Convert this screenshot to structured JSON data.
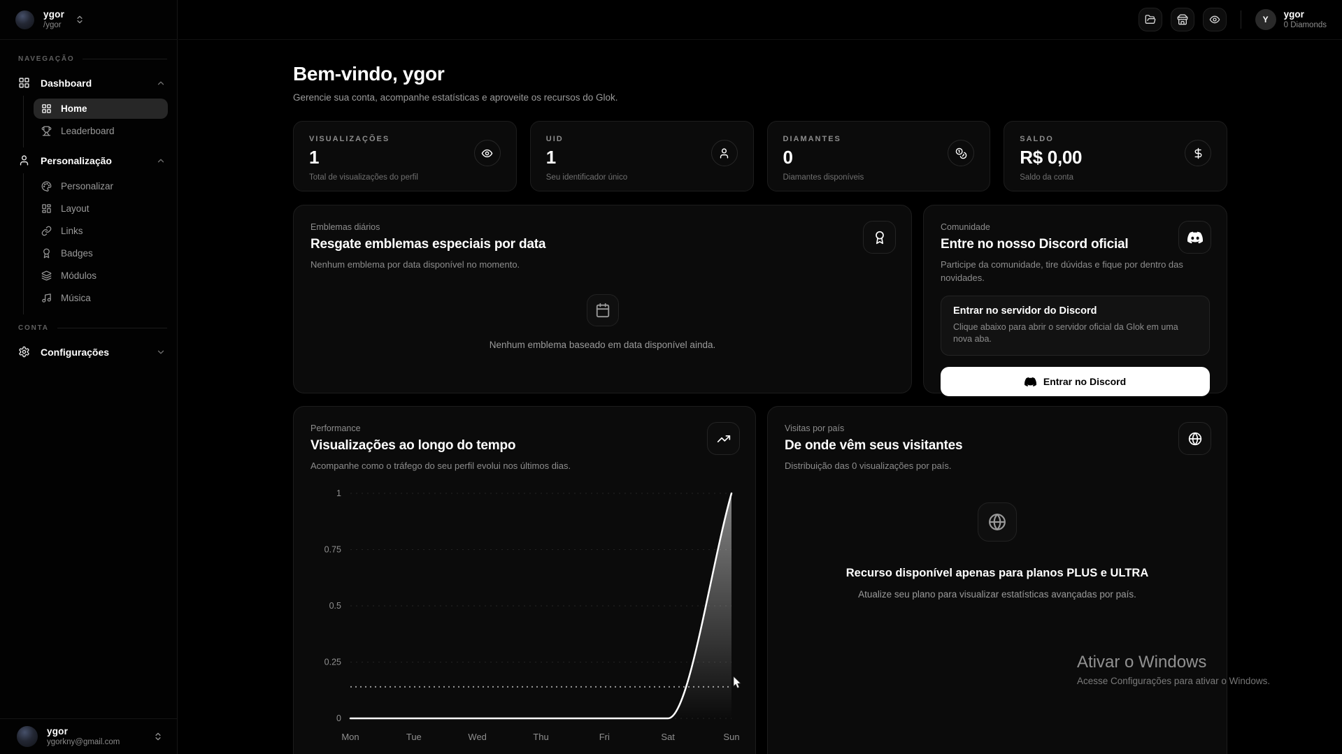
{
  "sidebar": {
    "user": {
      "name": "ygor",
      "handle": "/ygor"
    },
    "section_nav": "NAVEGAÇÃO",
    "section_account": "CONTA",
    "groups": [
      {
        "label": "Dashboard",
        "icon": "layout-grid-icon",
        "items": [
          {
            "label": "Home",
            "icon": "layout-grid-icon",
            "active": true
          },
          {
            "label": "Leaderboard",
            "icon": "trophy-icon",
            "active": false
          }
        ]
      },
      {
        "label": "Personalização",
        "icon": "user-icon",
        "items": [
          {
            "label": "Personalizar",
            "icon": "palette-icon"
          },
          {
            "label": "Layout",
            "icon": "layout-dashboard-icon"
          },
          {
            "label": "Links",
            "icon": "link-icon"
          },
          {
            "label": "Badges",
            "icon": "award-icon"
          },
          {
            "label": "Módulos",
            "icon": "layers-icon"
          },
          {
            "label": "Música",
            "icon": "music-icon"
          }
        ]
      }
    ],
    "settings": {
      "label": "Configurações",
      "icon": "gear-icon"
    },
    "footer": {
      "name": "ygor",
      "email": "ygorkny@gmail.com"
    }
  },
  "header": {
    "buttons": [
      {
        "icon": "folder-open-icon"
      },
      {
        "icon": "store-icon"
      },
      {
        "icon": "eye-icon"
      }
    ],
    "user": {
      "initial": "Y",
      "name": "ygor",
      "diamonds": "0 Diamonds"
    }
  },
  "main": {
    "welcome": {
      "title": "Bem-vindo, ygor",
      "subtitle": "Gerencie sua conta, acompanhe estatísticas e aproveite os recursos do Glok."
    },
    "stats": [
      {
        "label": "VISUALIZAÇÕES",
        "value": "1",
        "desc": "Total de visualizações do perfil",
        "icon": "eye-icon"
      },
      {
        "label": "UID",
        "value": "1",
        "desc": "Seu identificador único",
        "icon": "user-icon"
      },
      {
        "label": "DIAMANTES",
        "value": "0",
        "desc": "Diamantes disponíveis",
        "icon": "coins-icon"
      },
      {
        "label": "SALDO",
        "value": "R$ 0,00",
        "desc": "Saldo da conta",
        "icon": "dollar-icon"
      }
    ],
    "badges_card": {
      "eyebrow": "Emblemas diários",
      "title": "Resgate emblemas especiais por data",
      "subtitle": "Nenhum emblema por data disponível no momento.",
      "corner_icon": "award-icon",
      "empty_icon": "calendar-icon",
      "empty_text": "Nenhum emblema baseado em data disponível ainda."
    },
    "discord_card": {
      "eyebrow": "Comunidade",
      "title": "Entre no nosso Discord oficial",
      "subtitle": "Participe da comunidade, tire dúvidas e fique por dentro das novidades.",
      "corner_icon": "discord-icon",
      "panel_title": "Entrar no servidor do Discord",
      "panel_text": "Clique abaixo para abrir o servidor oficial da Glok em uma nova aba.",
      "button_label": "Entrar no Discord"
    },
    "performance_card": {
      "eyebrow": "Performance",
      "title": "Visualizações ao longo do tempo",
      "subtitle": "Acompanhe como o tráfego do seu perfil evolui nos últimos dias.",
      "corner_icon": "trending-up-icon"
    },
    "visits_card": {
      "eyebrow": "Visitas por país",
      "title": "De onde vêm seus visitantes",
      "subtitle": "Distribuição das 0 visualizações por país.",
      "corner_icon": "globe-icon",
      "locked_icon": "globe-icon",
      "locked_title": "Recurso disponível apenas para planos PLUS e ULTRA",
      "locked_text": "Atualize seu plano para visualizar estatísticas avançadas por país."
    }
  },
  "chart_data": {
    "type": "line",
    "title": "Visualizações ao longo do tempo",
    "x": [
      "Mon",
      "Tue",
      "Wed",
      "Thu",
      "Fri",
      "Sat",
      "Sun"
    ],
    "series": [
      {
        "name": "Visualizações",
        "values": [
          0,
          0,
          0,
          0,
          0,
          0,
          1
        ]
      }
    ],
    "yticks": [
      0,
      0.25,
      0.5,
      0.75,
      1
    ],
    "ylim": [
      0,
      1
    ],
    "reference_value": 0.14,
    "grid": "dashed-horizontal",
    "legend": "none",
    "line_color": "#ffffff",
    "area_fill": "white-vertical-gradient",
    "grid_color": "#242424",
    "tick_color": "#8f8f8f"
  },
  "watermark": {
    "title": "Ativar o Windows",
    "subtitle": "Acesse Configurações para ativar o Windows."
  }
}
